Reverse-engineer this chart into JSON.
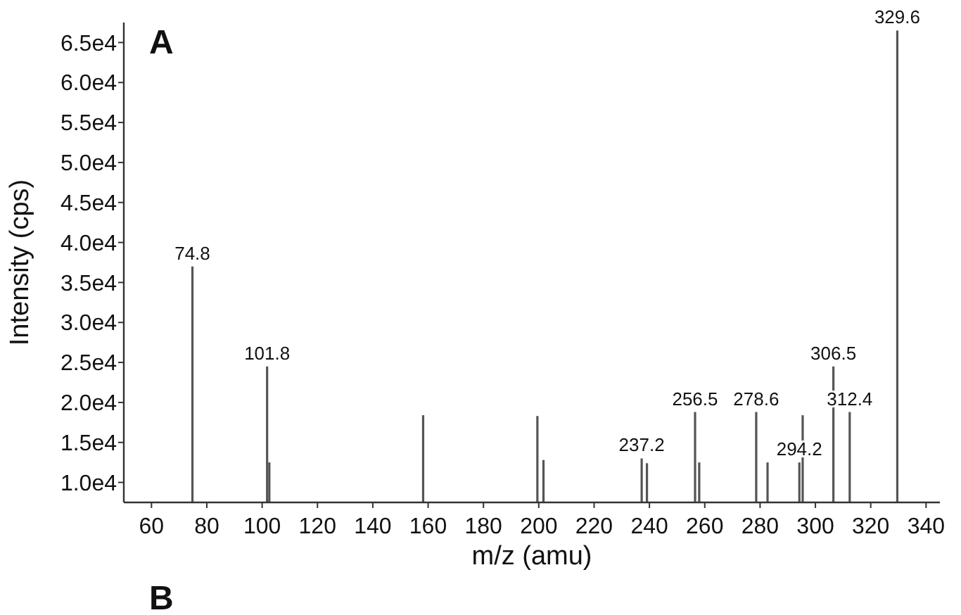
{
  "chart_data": {
    "type": "bar",
    "xlabel": "m/z (amu)",
    "ylabel": "Intensity (cps)",
    "x": [
      74.8,
      101.8,
      102.6,
      158.2,
      199.5,
      201.7,
      237.2,
      239.1,
      256.5,
      258,
      278.6,
      282.7,
      294.2,
      295.4,
      306.5,
      312.4,
      329.6
    ],
    "series": [
      {
        "color": "#555555",
        "values": [
          37000,
          24500,
          12500,
          18400,
          18300,
          12800,
          13000,
          12400,
          18800,
          12500,
          18800,
          12500,
          12500,
          18400,
          24500,
          18800,
          66500
        ]
      }
    ],
    "xlim": [
      50,
      345
    ],
    "xticks": [
      60,
      80,
      100,
      120,
      140,
      160,
      180,
      200,
      220,
      240,
      260,
      280,
      300,
      320,
      340
    ],
    "ylim": [
      7500,
      67500
    ],
    "yticks": [
      {
        "value": 10000,
        "label": "1.0e4"
      },
      {
        "value": 15000,
        "label": "1.5e4"
      },
      {
        "value": 20000,
        "label": "2.0e4"
      },
      {
        "value": 25000,
        "label": "2.5e4"
      },
      {
        "value": 30000,
        "label": "3.0e4"
      },
      {
        "value": 35000,
        "label": "3.5e4"
      },
      {
        "value": 40000,
        "label": "4.0e4"
      },
      {
        "value": 45000,
        "label": "4.5e4"
      },
      {
        "value": 50000,
        "label": "5.0e4"
      },
      {
        "value": 55000,
        "label": "5.5e4"
      },
      {
        "value": 60000,
        "label": "6.0e4"
      },
      {
        "value": 65000,
        "label": "6.5e4"
      }
    ],
    "annotations": [
      "A",
      "B",
      {
        "text": "74.8",
        "x": 74.8,
        "y": 37000
      },
      {
        "text": "101.8",
        "x": 101.8,
        "y": 24500
      },
      {
        "text": "237.2",
        "x": 237.2,
        "y": 13000
      },
      {
        "text": "256.5",
        "x": 256.5,
        "y": 18800
      },
      {
        "text": "278.6",
        "x": 278.6,
        "y": 18800
      },
      {
        "text": "294.2",
        "x": 294.2,
        "y": 12500
      },
      {
        "text": "306.5",
        "x": 306.5,
        "y": 24500
      },
      {
        "text": "312.4",
        "x": 312.4,
        "y": 18800
      },
      {
        "text": "329.6",
        "x": 329.6,
        "y": 66500
      }
    ]
  }
}
